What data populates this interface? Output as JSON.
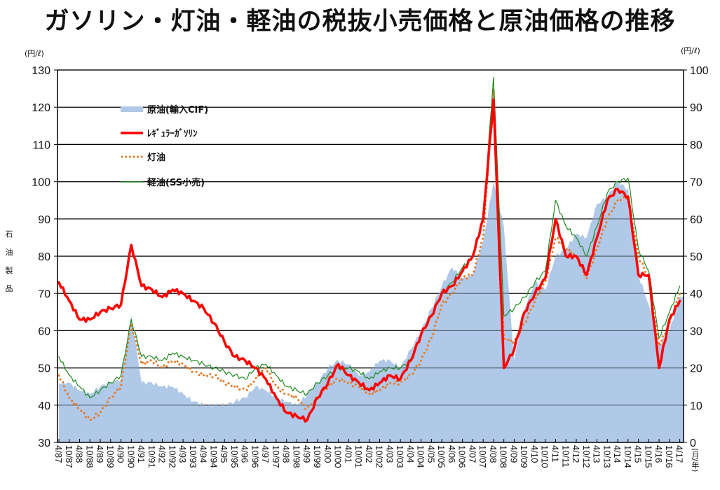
{
  "title": "ガソリン・灯油・軽油の税抜小売価格と原油価格の推移",
  "axes": {
    "left_unit": "(円/ℓ)",
    "right_unit": "(円/ℓ)",
    "left_label_chars": [
      "石",
      "油",
      "製",
      "品"
    ],
    "x_unit": "(月/年)"
  },
  "legend": {
    "items": [
      {
        "key": "crude",
        "label": "原油(輸入CIF)",
        "color": "#B0C9E8",
        "style": "area"
      },
      {
        "key": "gasoline",
        "label": "ﾚｷﾞｭﾗｰｶﾞｿﾘﾝ",
        "color": "#FF0000",
        "style": "thick-line"
      },
      {
        "key": "kerosene",
        "label": "灯油",
        "color": "#E87722",
        "style": "dotted"
      },
      {
        "key": "diesel",
        "label": "軽油(SS小売)",
        "color": "#1E8A1E",
        "style": "thin-line"
      }
    ]
  },
  "chart_data": {
    "type": "line",
    "title": "ガソリン・灯油・軽油の税抜小売価格と原油価格の推移",
    "xlabel": "(月/年)",
    "ylabel": "石油製品 (円/ℓ)",
    "y2label": "原油 (円/ℓ)",
    "ylim": [
      30,
      130
    ],
    "y2lim": [
      0,
      100
    ],
    "yticks": [
      30,
      40,
      50,
      60,
      70,
      80,
      90,
      100,
      110,
      120,
      130
    ],
    "y2ticks": [
      0,
      10,
      20,
      30,
      40,
      50,
      60,
      70,
      80,
      90,
      100
    ],
    "grid": true,
    "legend_position": "upper-left inside",
    "categories": [
      "4/87",
      "10/87",
      "4/88",
      "10/88",
      "4/89",
      "10/89",
      "4/90",
      "10/90",
      "4/91",
      "10/91",
      "4/92",
      "10/92",
      "4/93",
      "10/93",
      "4/94",
      "10/94",
      "4/95",
      "10/95",
      "4/96",
      "10/96",
      "4/97",
      "10/97",
      "4/98",
      "10/98",
      "4/99",
      "10/99",
      "4/00",
      "10/00",
      "4/01",
      "10/01",
      "4/02",
      "10/02",
      "4/03",
      "10/03",
      "4/04",
      "10/04",
      "4/05",
      "10/05",
      "4/06",
      "10/06",
      "4/07",
      "10/07",
      "4/08",
      "10/08",
      "4/09",
      "10/09",
      "4/10",
      "10/10",
      "4/11",
      "10/11",
      "4/12",
      "10/12",
      "4/13",
      "10/13",
      "4/14",
      "10/14",
      "4/15",
      "10/15",
      "4/16",
      "10/16",
      "4/17"
    ],
    "series": [
      {
        "name": "原油(輸入CIF)",
        "axis": "right",
        "type": "area",
        "color": "#B0C9E8",
        "values": [
          16,
          16,
          14,
          13,
          15,
          16,
          17,
          34,
          16,
          16,
          15,
          15,
          13,
          11,
          10,
          10,
          10,
          11,
          12,
          15,
          14,
          12,
          11,
          10,
          13,
          16,
          20,
          22,
          21,
          18,
          19,
          22,
          22,
          20,
          25,
          30,
          36,
          42,
          47,
          44,
          45,
          54,
          70,
          58,
          22,
          36,
          43,
          41,
          50,
          52,
          56,
          55,
          64,
          66,
          70,
          68,
          45,
          37,
          26,
          30,
          39
        ],
        "x_index": "categories"
      },
      {
        "name": "ﾚｷﾞｭﾗｰｶﾞｿﾘﾝ",
        "axis": "left",
        "type": "line",
        "color": "#FF0000",
        "values": [
          73,
          68,
          63,
          63,
          65,
          66,
          67,
          83,
          72,
          71,
          69,
          71,
          70,
          68,
          66,
          62,
          57,
          53,
          52,
          50,
          47,
          42,
          38,
          37,
          36,
          42,
          46,
          51,
          48,
          46,
          44,
          46,
          48,
          47,
          52,
          59,
          64,
          70,
          72,
          76,
          80,
          90,
          122,
          50,
          55,
          65,
          70,
          74,
          90,
          80,
          80,
          75,
          85,
          95,
          98,
          96,
          75,
          75,
          50,
          63,
          68
        ],
        "x_index": "categories"
      },
      {
        "name": "灯油",
        "axis": "left",
        "type": "line",
        "color": "#E87722",
        "values": [
          48,
          42,
          39,
          36,
          38,
          42,
          45,
          62,
          51,
          52,
          50,
          52,
          51,
          49,
          48,
          48,
          46,
          45,
          44,
          47,
          50,
          45,
          43,
          42,
          39,
          42,
          45,
          47,
          46,
          45,
          43,
          44,
          46,
          46,
          48,
          52,
          58,
          67,
          70,
          74,
          75,
          85,
          125,
          58,
          57,
          62,
          68,
          73,
          85,
          82,
          80,
          74,
          82,
          90,
          95,
          96,
          80,
          74,
          56,
          62,
          70
        ],
        "x_index": "categories"
      },
      {
        "name": "軽油(SS小売)",
        "axis": "left",
        "type": "line",
        "color": "#1E8A1E",
        "values": [
          53,
          48,
          45,
          42,
          44,
          46,
          48,
          63,
          53,
          53,
          52,
          54,
          53,
          52,
          51,
          50,
          49,
          48,
          47,
          50,
          51,
          48,
          45,
          44,
          43,
          46,
          48,
          50,
          50,
          49,
          47,
          49,
          50,
          50,
          52,
          59,
          64,
          70,
          73,
          77,
          80,
          90,
          128,
          64,
          66,
          69,
          73,
          76,
          95,
          88,
          85,
          80,
          88,
          97,
          100,
          101,
          82,
          76,
          58,
          65,
          72
        ],
        "x_index": "categories"
      }
    ]
  }
}
